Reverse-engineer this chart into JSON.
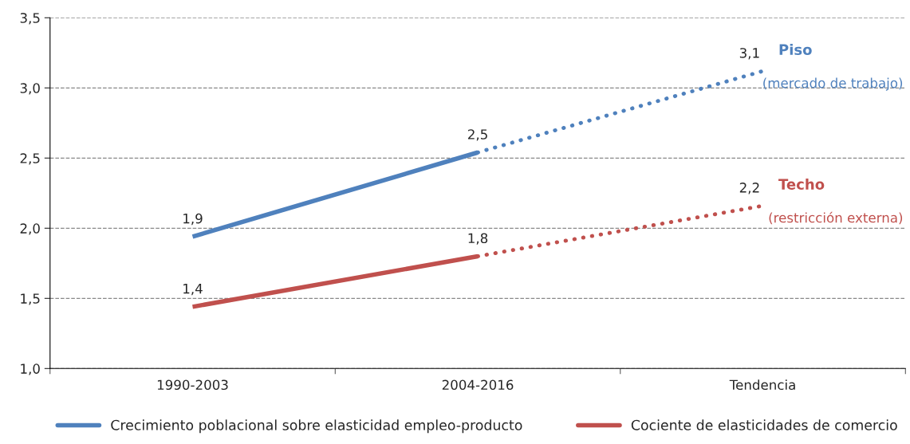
{
  "chart_data": {
    "type": "line",
    "categories": [
      "1990-2003",
      "2004-2016",
      "Tendencia"
    ],
    "series": [
      {
        "name": "Crecimiento poblacional sobre elasticidad empleo-producto",
        "color": "#4f81bd",
        "line_style": "solid",
        "values": [
          1.94,
          2.54,
          null
        ],
        "value_labels": [
          "1,9",
          "2,5",
          null
        ]
      },
      {
        "color": "#4f81bd",
        "line_style": "dotted",
        "values": [
          null,
          2.54,
          3.12
        ],
        "value_labels": [
          null,
          null,
          "3,1"
        ]
      },
      {
        "name": "Cociente de elasticidades de comercio",
        "color": "#c0504d",
        "line_style": "solid",
        "values": [
          1.44,
          1.8,
          null
        ],
        "value_labels": [
          "1,4",
          "1,8",
          null
        ]
      },
      {
        "color": "#c0504d",
        "line_style": "dotted",
        "values": [
          null,
          1.8,
          2.16
        ],
        "value_labels": [
          null,
          null,
          "2,2"
        ]
      }
    ],
    "ylim": [
      1.0,
      3.5
    ],
    "yticks": [
      {
        "value": 1.0,
        "label": "1,0"
      },
      {
        "value": 1.5,
        "label": "1,5"
      },
      {
        "value": 2.0,
        "label": "2,0"
      },
      {
        "value": 2.5,
        "label": "2,5"
      },
      {
        "value": 3.0,
        "label": "3,0"
      },
      {
        "value": 3.5,
        "label": "3,5"
      }
    ],
    "grid": "y",
    "legend": "bottom",
    "marker": "none",
    "annotations": [
      "Piso",
      "(mercado de trabajo)",
      "Techo",
      "(restricción externa)"
    ]
  }
}
